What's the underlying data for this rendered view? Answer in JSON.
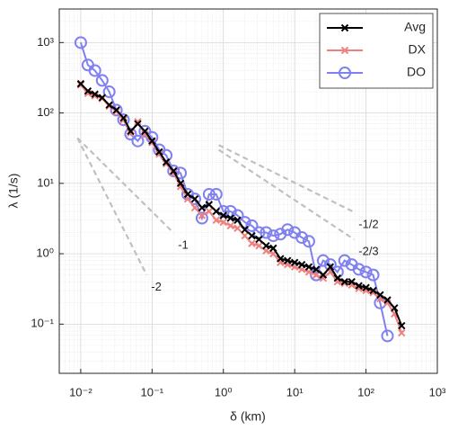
{
  "chart_data": {
    "type": "line",
    "x_label": "δ (km)",
    "y_label": "λ (1/s)",
    "xlog": true,
    "ylog": true,
    "grid": true,
    "minor_grid": true,
    "legend": "top-right",
    "xlim": [
      0.005,
      1000
    ],
    "ylim": [
      0.02,
      3000
    ],
    "xticks": [
      {
        "value": 0.01,
        "label": "10⁻²"
      },
      {
        "value": 0.1,
        "label": "10⁻¹"
      },
      {
        "value": 1,
        "label": "10⁰"
      },
      {
        "value": 10,
        "label": "10¹"
      },
      {
        "value": 100,
        "label": "10²"
      },
      {
        "value": 1000,
        "label": "10³"
      }
    ],
    "yticks": [
      {
        "value": 0.1,
        "label": "10⁻¹"
      },
      {
        "value": 1,
        "label": "10⁰"
      },
      {
        "value": 10,
        "label": "10¹"
      },
      {
        "value": 100,
        "label": "10²"
      },
      {
        "value": 1000,
        "label": "10³"
      }
    ],
    "x": [
      0.01,
      0.0126,
      0.0158,
      0.02,
      0.0251,
      0.0316,
      0.0398,
      0.0501,
      0.0631,
      0.0794,
      0.1,
      0.126,
      0.158,
      0.2,
      0.251,
      0.316,
      0.398,
      0.501,
      0.631,
      0.794,
      1,
      1.26,
      1.58,
      2,
      2.51,
      3.16,
      3.98,
      5.01,
      6.31,
      7.94,
      10,
      12.6,
      15.8,
      20,
      25.1,
      31.6,
      39.8,
      50.1,
      63.1,
      79.4,
      100,
      126,
      158,
      200,
      251,
      316
    ],
    "series": [
      {
        "name": "Avg",
        "color": "#000000",
        "marker": "x",
        "values": [
          260,
          205,
          185,
          165,
          130,
          110,
          85,
          55,
          70,
          55,
          40,
          28,
          20,
          15,
          10,
          7,
          6,
          4.5,
          5,
          4,
          3.5,
          3.2,
          3,
          2.2,
          1.8,
          1.6,
          1.3,
          1.2,
          0.85,
          0.8,
          0.75,
          0.7,
          0.65,
          0.6,
          0.5,
          0.65,
          0.45,
          0.4,
          0.4,
          0.35,
          0.33,
          0.3,
          0.26,
          0.22,
          0.17,
          0.095
        ]
      },
      {
        "name": "DX",
        "color": "#f08080",
        "marker": "x",
        "values": [
          250,
          190,
          175,
          160,
          125,
          105,
          80,
          52,
          75,
          50,
          38,
          26,
          19,
          14,
          9,
          6,
          4.5,
          3.5,
          4,
          3,
          2.8,
          2.5,
          2.3,
          1.8,
          1.4,
          1.3,
          1.1,
          1,
          0.75,
          0.7,
          0.65,
          0.6,
          0.55,
          0.5,
          0.45,
          0.55,
          0.4,
          0.38,
          0.36,
          0.32,
          0.3,
          0.28,
          0.23,
          0.2,
          0.14,
          0.075
        ]
      },
      {
        "name": "DO",
        "color": "#8080f0",
        "marker": "o",
        "values": [
          1000,
          480,
          400,
          290,
          200,
          110,
          80,
          50,
          40,
          55,
          45,
          30,
          25,
          15,
          14,
          7,
          6,
          3.2,
          7,
          7,
          4,
          4,
          3.5,
          2.8,
          2.5,
          2,
          2,
          1.8,
          1.9,
          2.2,
          2,
          1.7,
          1.5,
          0.5,
          0.8,
          0.7,
          0.55,
          0.8,
          0.7,
          0.6,
          0.55,
          0.5,
          0.2,
          0.068,
          null,
          null
        ]
      }
    ],
    "reference_lines": [
      {
        "label": "-2",
        "x": [
          0.009,
          0.084
        ],
        "y": [
          44,
          0.5
        ]
      },
      {
        "label": "-1",
        "x": [
          0.009,
          0.2
        ],
        "y": [
          44,
          1.98
        ]
      },
      {
        "label": "-1/2",
        "x": [
          0.86,
          68
        ],
        "y": [
          35,
          3.9
        ]
      },
      {
        "label": "-2/3",
        "x": [
          0.86,
          68
        ],
        "y": [
          30,
          1.6
        ]
      }
    ],
    "reference_color": "#c0c0c0"
  }
}
